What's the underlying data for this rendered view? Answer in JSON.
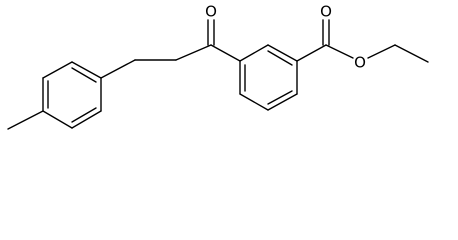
{
  "atoms": [
    {
      "label": "O"
    },
    {
      "label": "O"
    },
    {
      "label": "O"
    }
  ]
}
